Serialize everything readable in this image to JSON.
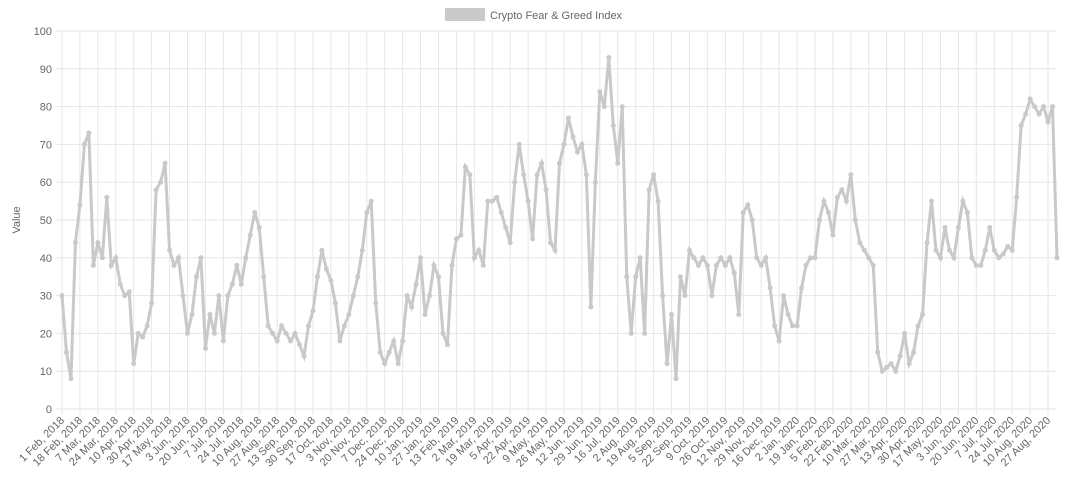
{
  "chart_data": {
    "type": "line",
    "legend": "top",
    "ylabel": "Value",
    "grid": true,
    "ylim": [
      0,
      100
    ],
    "yticks": [
      0,
      10,
      20,
      30,
      40,
      50,
      60,
      70,
      80,
      90,
      100
    ],
    "categories": [
      "1 Feb, 2018",
      null,
      null,
      null,
      "18 Feb, 2018",
      null,
      null,
      null,
      "7 Mar, 2018",
      null,
      null,
      null,
      "24 Mar, 2018",
      null,
      null,
      null,
      "10 Apr, 2018",
      null,
      null,
      null,
      "30 Apr, 2018",
      null,
      null,
      null,
      "17 May, 2018",
      null,
      null,
      null,
      "3 Jun, 2018",
      null,
      null,
      null,
      "20 Jun, 2018",
      null,
      null,
      null,
      "7 Jul, 2018",
      null,
      null,
      null,
      "24 Jul, 2018",
      null,
      null,
      null,
      "10 Aug, 2018",
      null,
      null,
      null,
      "27 Aug, 2018",
      null,
      null,
      null,
      "13 Sep, 2018",
      null,
      null,
      null,
      "30 Sep, 2018",
      null,
      null,
      null,
      "17 Oct, 2018",
      null,
      null,
      null,
      "3 Nov, 2018",
      null,
      null,
      null,
      "20 Nov, 2018",
      null,
      null,
      null,
      "7 Dec, 2018",
      null,
      null,
      null,
      "24 Dec, 2018",
      null,
      null,
      null,
      "10 Jan, 2019",
      null,
      null,
      null,
      "27 Jan, 2019",
      null,
      null,
      null,
      "13 Feb, 2019",
      null,
      null,
      null,
      "2 Mar, 2019",
      null,
      null,
      null,
      "19 Mar, 2019",
      null,
      null,
      null,
      "5 Apr, 2019",
      null,
      null,
      null,
      "22 Apr, 2019",
      null,
      null,
      null,
      "9 May, 2019",
      null,
      null,
      null,
      "26 May, 2019",
      null,
      null,
      null,
      "12 Jun, 2019",
      null,
      null,
      null,
      "29 Jun, 2019",
      null,
      null,
      null,
      "16 Jul, 2019",
      null,
      null,
      null,
      "2 Aug, 2019",
      null,
      null,
      null,
      "19 Aug, 2019",
      null,
      null,
      null,
      "5 Sep, 2019",
      null,
      null,
      null,
      "22 Sep, 2019",
      null,
      null,
      null,
      "9 Oct, 2019",
      null,
      null,
      null,
      "26 Oct, 2019",
      null,
      null,
      null,
      "12 Nov, 2019",
      null,
      null,
      null,
      "29 Nov, 2019",
      null,
      null,
      null,
      "16 Dec, 2019",
      null,
      null,
      null,
      "2 Jan, 2020",
      null,
      null,
      null,
      "19 Jan, 2020",
      null,
      null,
      null,
      "5 Feb, 2020",
      null,
      null,
      null,
      "22 Feb, 2020",
      null,
      null,
      null,
      "10 Mar, 2020",
      null,
      null,
      null,
      "27 Mar, 2020",
      null,
      null,
      null,
      "13 Apr, 2020",
      null,
      null,
      null,
      "30 Apr, 2020",
      null,
      null,
      null,
      "17 May, 2020",
      null,
      null,
      null,
      "3 Jun, 2020",
      null,
      null,
      null,
      "20 Jun, 2020",
      null,
      null,
      null,
      "7 Jul, 2020",
      null,
      null,
      null,
      "24 Jul, 2020",
      null,
      null,
      null,
      "10 Aug, 2020",
      null,
      null,
      null,
      "27 Aug, 2020",
      null,
      null
    ],
    "series": [
      {
        "name": "Crypto Fear & Greed Index",
        "color": "#c9c9c9",
        "values": [
          30,
          15,
          8,
          44,
          54,
          70,
          73,
          38,
          44,
          40,
          56,
          38,
          40,
          33,
          30,
          31,
          12,
          20,
          19,
          22,
          28,
          58,
          60,
          65,
          42,
          38,
          40,
          30,
          20,
          25,
          35,
          40,
          16,
          25,
          20,
          30,
          18,
          30,
          33,
          38,
          33,
          40,
          46,
          52,
          48,
          35,
          22,
          20,
          18,
          22,
          20,
          18,
          20,
          17,
          14,
          22,
          26,
          35,
          42,
          37,
          34,
          28,
          18,
          22,
          25,
          30,
          35,
          42,
          52,
          55,
          28,
          15,
          12,
          15,
          18,
          12,
          18,
          30,
          27,
          33,
          40,
          25,
          30,
          38,
          35,
          20,
          17,
          38,
          45,
          46,
          64,
          62,
          40,
          42,
          38,
          55,
          55,
          56,
          52,
          48,
          44,
          60,
          70,
          62,
          55,
          45,
          62,
          65,
          58,
          44,
          42,
          65,
          70,
          77,
          72,
          68,
          70,
          62,
          27,
          60,
          84,
          80,
          93,
          75,
          65,
          80,
          35,
          20,
          35,
          40,
          20,
          58,
          62,
          55,
          30,
          12,
          25,
          8,
          35,
          30,
          42,
          40,
          38,
          40,
          38,
          30,
          38,
          40,
          38,
          40,
          36,
          25,
          52,
          54,
          50,
          40,
          38,
          40,
          32,
          22,
          18,
          30,
          25,
          22,
          22,
          32,
          38,
          40,
          40,
          50,
          55,
          52,
          46,
          56,
          58,
          55,
          62,
          50,
          44,
          42,
          40,
          38,
          15,
          10,
          11,
          12,
          10,
          14,
          20,
          12,
          15,
          22,
          25,
          44,
          55,
          42,
          40,
          48,
          42,
          40,
          48,
          55,
          52,
          40,
          38,
          38,
          42,
          48,
          42,
          40,
          41,
          43,
          42,
          56,
          75,
          78,
          82,
          80,
          78,
          80,
          76,
          80,
          40
        ]
      }
    ]
  }
}
